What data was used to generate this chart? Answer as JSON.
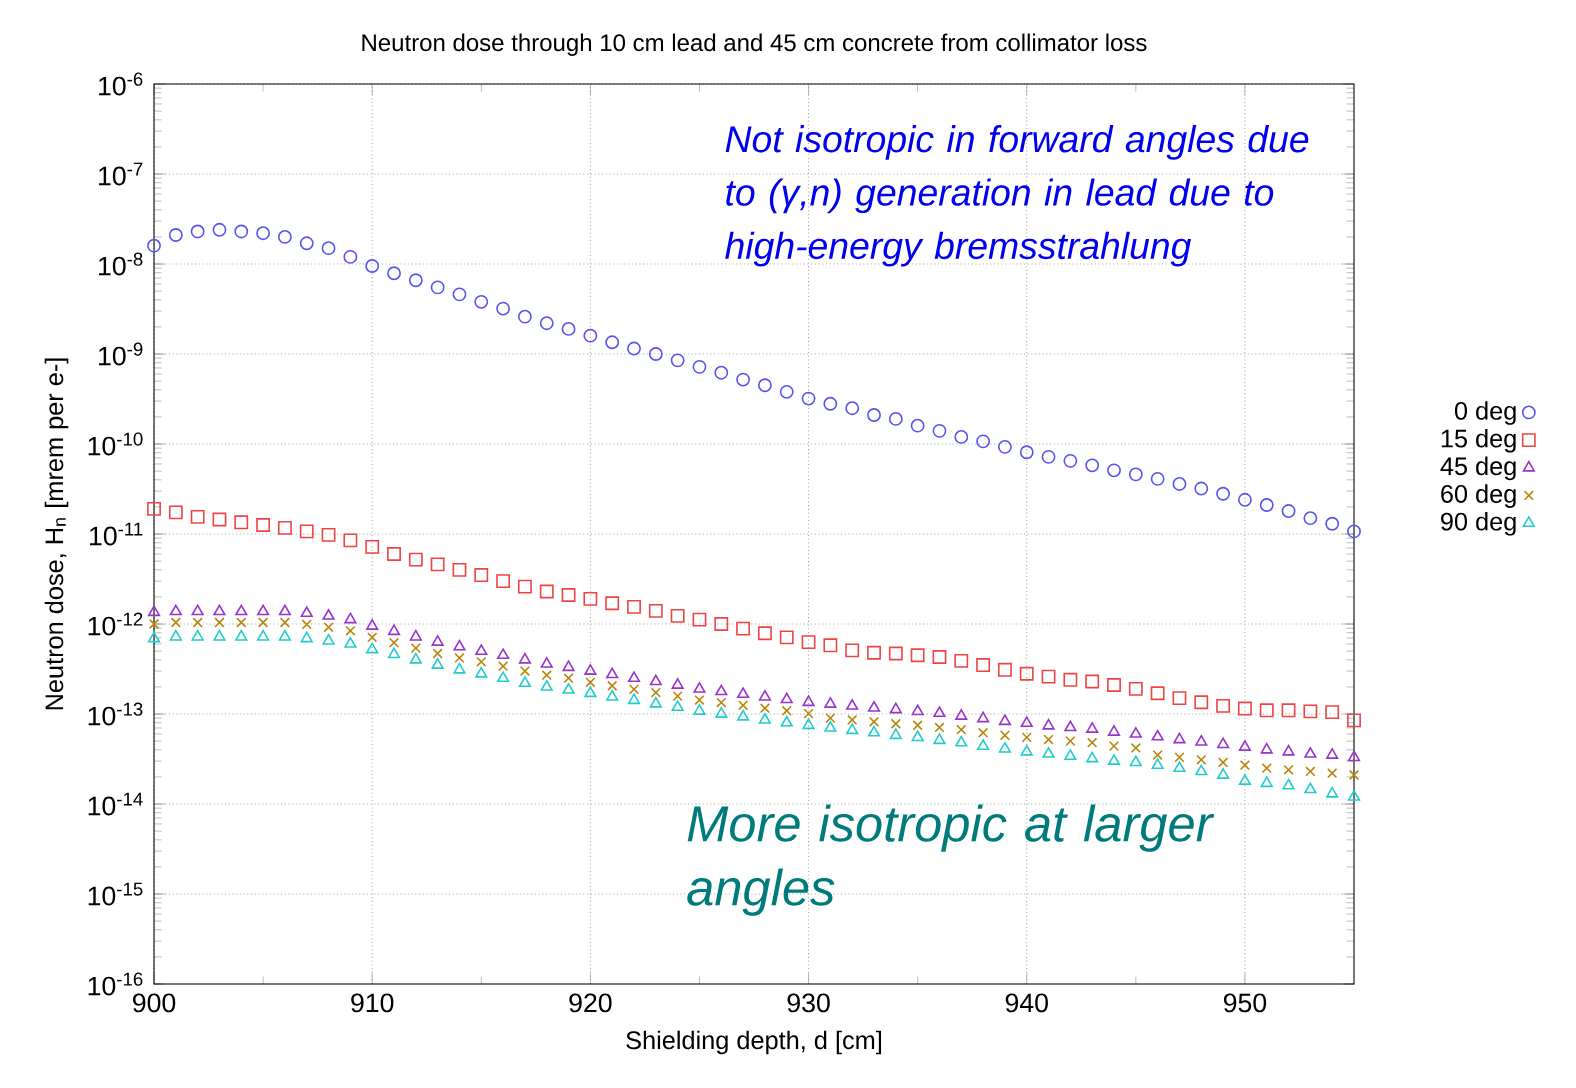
{
  "chart_data": {
    "type": "scatter",
    "title": "Neutron dose through 10 cm lead and 45 cm concrete from collimator loss",
    "xlabel": "Shielding depth, d [cm]",
    "ylabel": "Neutron dose, H$_{n}$ [mrem per e-]",
    "x": [
      900,
      901,
      902,
      903,
      904,
      905,
      906,
      907,
      908,
      909,
      910,
      911,
      912,
      913,
      914,
      915,
      916,
      917,
      918,
      919,
      920,
      921,
      922,
      923,
      924,
      925,
      926,
      927,
      928,
      929,
      930,
      931,
      932,
      933,
      934,
      935,
      936,
      937,
      938,
      939,
      940,
      941,
      942,
      943,
      944,
      945,
      946,
      947,
      948,
      949,
      950,
      951,
      952,
      953,
      954,
      955
    ],
    "series": [
      {
        "name": "0 deg",
        "color": "#5555ee",
        "marker": "circle",
        "values": [
          1.6e-08,
          2.1e-08,
          2.3e-08,
          2.4e-08,
          2.3e-08,
          2.2e-08,
          2e-08,
          1.7e-08,
          1.5e-08,
          1.2e-08,
          9.5e-09,
          7.9e-09,
          6.6e-09,
          5.5e-09,
          4.6e-09,
          3.8e-09,
          3.2e-09,
          2.6e-09,
          2.2e-09,
          1.9e-09,
          1.6e-09,
          1.35e-09,
          1.15e-09,
          1e-09,
          8.5e-10,
          7.2e-10,
          6.2e-10,
          5.2e-10,
          4.5e-10,
          3.8e-10,
          3.2e-10,
          2.8e-10,
          2.5e-10,
          2.1e-10,
          1.9e-10,
          1.6e-10,
          1.4e-10,
          1.2e-10,
          1.07e-10,
          9.3e-11,
          8.1e-11,
          7.2e-11,
          6.5e-11,
          5.8e-11,
          5.1e-11,
          4.6e-11,
          4.1e-11,
          3.6e-11,
          3.2e-11,
          2.8e-11,
          2.4e-11,
          2.1e-11,
          1.8e-11,
          1.5e-11,
          1.3e-11,
          1.07e-11
        ]
      },
      {
        "name": "15 deg",
        "color": "#ee4444",
        "marker": "square",
        "values": [
          1.9e-11,
          1.74e-11,
          1.55e-11,
          1.45e-11,
          1.35e-11,
          1.26e-11,
          1.17e-11,
          1.07e-11,
          9.8e-12,
          8.5e-12,
          7.2e-12,
          6e-12,
          5.2e-12,
          4.6e-12,
          4e-12,
          3.5e-12,
          3e-12,
          2.6e-12,
          2.3e-12,
          2.1e-12,
          1.9e-12,
          1.7e-12,
          1.55e-12,
          1.4e-12,
          1.23e-12,
          1.12e-12,
          1e-12,
          8.9e-13,
          7.9e-13,
          7.1e-13,
          6.3e-13,
          5.8e-13,
          5.1e-13,
          4.8e-13,
          4.7e-13,
          4.5e-13,
          4.3e-13,
          3.9e-13,
          3.5e-13,
          3.1e-13,
          2.8e-13,
          2.6e-13,
          2.4e-13,
          2.3e-13,
          2.1e-13,
          1.9e-13,
          1.7e-13,
          1.5e-13,
          1.35e-13,
          1.23e-13,
          1.15e-13,
          1.1e-13,
          1.1e-13,
          1.07e-13,
          1.05e-13,
          8.5e-14
        ]
      },
      {
        "name": "45 deg",
        "color": "#9933cc",
        "marker": "triangle",
        "values": [
          1.35e-12,
          1.38e-12,
          1.38e-12,
          1.38e-12,
          1.38e-12,
          1.38e-12,
          1.38e-12,
          1.32e-12,
          1.23e-12,
          1.12e-12,
          9.5e-13,
          8.3e-13,
          7.2e-13,
          6.3e-13,
          5.6e-13,
          5e-13,
          4.5e-13,
          4e-13,
          3.6e-13,
          3.3e-13,
          3e-13,
          2.75e-13,
          2.5e-13,
          2.3e-13,
          2.1e-13,
          1.9e-13,
          1.78e-13,
          1.66e-13,
          1.55e-13,
          1.45e-13,
          1.35e-13,
          1.29e-13,
          1.23e-13,
          1.17e-13,
          1.12e-13,
          1.07e-13,
          1.02e-13,
          9.5e-14,
          8.9e-14,
          8.3e-14,
          7.9e-14,
          7.4e-14,
          7.1e-14,
          6.8e-14,
          6.3e-14,
          6e-14,
          5.6e-14,
          5.2e-14,
          4.9e-14,
          4.6e-14,
          4.3e-14,
          4e-14,
          3.8e-14,
          3.6e-14,
          3.5e-14,
          3.3e-14
        ]
      },
      {
        "name": "60 deg",
        "color": "#b8860b",
        "marker": "cross",
        "values": [
          1e-12,
          1.04e-12,
          1.04e-12,
          1.04e-12,
          1.04e-12,
          1.04e-12,
          1.04e-12,
          9.9e-13,
          9.2e-13,
          8.4e-13,
          7.1e-13,
          6.2e-13,
          5.4e-13,
          4.7e-13,
          4.2e-13,
          3.8e-13,
          3.4e-13,
          3e-13,
          2.7e-13,
          2.5e-13,
          2.25e-13,
          2.06e-13,
          1.88e-13,
          1.73e-13,
          1.58e-13,
          1.43e-13,
          1.34e-13,
          1.25e-13,
          1.16e-13,
          1.09e-13,
          1.01e-13,
          9e-14,
          8.6e-14,
          8.2e-14,
          7.8e-14,
          7.5e-14,
          7.1e-14,
          6.7e-14,
          6.2e-14,
          5.8e-14,
          5.5e-14,
          5.2e-14,
          5e-14,
          4.8e-14,
          4.4e-14,
          4.2e-14,
          3.5e-14,
          3.3e-14,
          3.1e-14,
          2.9e-14,
          2.7e-14,
          2.5e-14,
          2.4e-14,
          2.3e-14,
          2.2e-14,
          2.1e-14
        ]
      },
      {
        "name": "90 deg",
        "color": "#22cccc",
        "marker": "triangle",
        "values": [
          6.9e-13,
          7.2e-13,
          7.2e-13,
          7.2e-13,
          7.2e-13,
          7.2e-13,
          7.2e-13,
          6.9e-13,
          6.5e-13,
          6e-13,
          5.2e-13,
          4.6e-13,
          4e-13,
          3.5e-13,
          3.1e-13,
          2.8e-13,
          2.5e-13,
          2.2e-13,
          2e-13,
          1.85e-13,
          1.7e-13,
          1.55e-13,
          1.42e-13,
          1.3e-13,
          1.19e-13,
          1.08e-13,
          1e-13,
          9.3e-14,
          8.6e-14,
          8e-14,
          7.5e-14,
          7e-14,
          6.6e-14,
          6.2e-14,
          5.8e-14,
          5.5e-14,
          5.1e-14,
          4.8e-14,
          4.4e-14,
          4.1e-14,
          3.8e-14,
          3.6e-14,
          3.4e-14,
          3.2e-14,
          3e-14,
          2.9e-14,
          2.7e-14,
          2.5e-14,
          2.3e-14,
          2.1e-14,
          1.8e-14,
          1.7e-14,
          1.6e-14,
          1.45e-14,
          1.3e-14,
          1.2e-14
        ]
      }
    ],
    "xlim": [
      900,
      955
    ],
    "xticks": [
      900,
      910,
      920,
      930,
      940,
      950
    ],
    "ylim": [
      1e-16,
      1e-06
    ],
    "yticks": [
      {
        "value": 1e-16,
        "label": "10$^{-16}$"
      },
      {
        "value": 1e-15,
        "label": "10$^{-15}$"
      },
      {
        "value": 1e-14,
        "label": "10$^{-14}$"
      },
      {
        "value": 1e-13,
        "label": "10$^{-13}$"
      },
      {
        "value": 1e-12,
        "label": "10$^{-12}$"
      },
      {
        "value": 1e-11,
        "label": "10$^{-11}$"
      },
      {
        "value": 1e-10,
        "label": "10$^{-10}$"
      },
      {
        "value": 1e-09,
        "label": "10$^{-9}$"
      },
      {
        "value": 1e-08,
        "label": "10$^{-8}$"
      },
      {
        "value": 1e-07,
        "label": "10$^{-7}$"
      },
      {
        "value": 1e-06,
        "label": "10$^{-6}$"
      }
    ],
    "log": "y",
    "grid": true,
    "legend": "right",
    "annotations": [
      "Not isotropic in forward angles due to (γ,n) generation in lead due to high-energy bremsstrahlung",
      "More isotropic at larger angles"
    ]
  }
}
